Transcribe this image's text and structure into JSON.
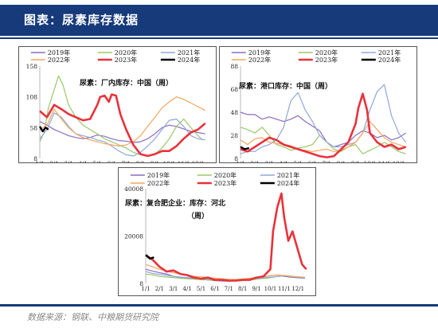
{
  "header": {
    "title": "图表：尿素库存数据"
  },
  "footer": {
    "source": "数据来源：钢联、中粮期货研究院"
  },
  "legend_order": [
    "2019年",
    "2020年",
    "2021年",
    "2022年",
    "2023年",
    "2024年"
  ],
  "colors": {
    "2019年": "#8c6bbf",
    "2020年": "#9bc76b",
    "2021年": "#8fa8d8",
    "2022年": "#f5a55c",
    "2023年": "#e8323b",
    "2024年": "#000000"
  },
  "x_tick_labels": [
    "1/1",
    "2/1",
    "3/1",
    "4/1",
    "5/1",
    "6/1",
    "7/1",
    "8/1",
    "9/1",
    "10/1",
    "11/1",
    "12/1"
  ],
  "chart_data": [
    {
      "type": "line",
      "annotation": "尿素：厂内库存：中国（周）",
      "x_unit": "month",
      "ylim": [
        8,
        158
      ],
      "yticks": [
        "8",
        "58",
        "108",
        "158"
      ],
      "series": [
        {
          "name": "2019年",
          "x": [
            0,
            0.5,
            1,
            1.5,
            2,
            2.5,
            3,
            3.5,
            4,
            4.5,
            5,
            5.5,
            6,
            6.5,
            7,
            7.5,
            8,
            8.5,
            9,
            9.5,
            10,
            10.5,
            11,
            11.5
          ],
          "y": [
            68,
            62,
            55,
            50,
            45,
            42,
            40,
            42,
            46,
            44,
            40,
            37,
            36,
            34,
            35,
            40,
            48,
            58,
            62,
            60,
            56,
            52,
            50,
            48
          ]
        },
        {
          "name": "2020年",
          "x": [
            0,
            0.3,
            0.6,
            1,
            1.3,
            1.6,
            2,
            2.5,
            3,
            3.5,
            4,
            4.5,
            5,
            5.5,
            6,
            6.5,
            7,
            7.5,
            8,
            8.5,
            9,
            9.5,
            10,
            10.5,
            11,
            11.3
          ],
          "y": [
            35,
            50,
            90,
            120,
            142,
            128,
            95,
            75,
            62,
            55,
            48,
            40,
            35,
            30,
            25,
            18,
            14,
            12,
            15,
            25,
            40,
            60,
            72,
            58,
            45,
            38
          ]
        },
        {
          "name": "2021年",
          "x": [
            0,
            0.5,
            1,
            1.5,
            2,
            2.5,
            3,
            3.5,
            4,
            4.5,
            5,
            5.5,
            6,
            6.5,
            7,
            7.5,
            8,
            8.5,
            9,
            9.5,
            10,
            10.5,
            11,
            11.5
          ],
          "y": [
            40,
            55,
            82,
            75,
            60,
            48,
            45,
            42,
            38,
            35,
            28,
            20,
            14,
            12,
            18,
            28,
            40,
            55,
            70,
            72,
            60,
            45,
            40,
            38
          ]
        },
        {
          "name": "2022年",
          "x": [
            0,
            0.5,
            1,
            1.5,
            2,
            2.5,
            3,
            3.5,
            4,
            4.5,
            5,
            5.5,
            6,
            6.5,
            7,
            7.5,
            8,
            8.5,
            9,
            9.5,
            10,
            10.5,
            11,
            11.5
          ],
          "y": [
            55,
            62,
            88,
            72,
            58,
            48,
            42,
            38,
            35,
            32,
            30,
            28,
            30,
            35,
            45,
            60,
            75,
            90,
            100,
            108,
            104,
            98,
            92,
            86
          ]
        },
        {
          "name": "2023年",
          "x": [
            0,
            0.5,
            1,
            1.5,
            2,
            2.5,
            3,
            3.5,
            4,
            4.2,
            4.5,
            4.8,
            5,
            5.3,
            5.6,
            6,
            6.5,
            7,
            7.5,
            8,
            8.5,
            9,
            9.5,
            10,
            10.5,
            11,
            11.5
          ],
          "y": [
            85,
            75,
            95,
            88,
            80,
            75,
            70,
            72,
            95,
            108,
            110,
            100,
            112,
            110,
            80,
            55,
            30,
            15,
            12,
            15,
            20,
            20,
            28,
            40,
            50,
            55,
            65
          ]
        },
        {
          "name": "2024年",
          "x": [
            0,
            0.2,
            0.4,
            0.6
          ],
          "y": [
            60,
            52,
            58,
            55
          ]
        }
      ]
    },
    {
      "type": "line",
      "annotation": "尿素：港口库存：中国（周）",
      "x_unit": "month",
      "ylim": [
        8,
        88
      ],
      "yticks": [
        "8",
        "28",
        "48",
        "68",
        "88"
      ],
      "series": [
        {
          "name": "2019年",
          "x": [
            0,
            0.5,
            1,
            1.5,
            2,
            2.5,
            3,
            3.5,
            4,
            4.5,
            5,
            5.5,
            6,
            6.5,
            7,
            7.5,
            8,
            8.5,
            9,
            9.5,
            10,
            10.5,
            11,
            11.5
          ],
          "y": [
            48,
            46,
            46,
            42,
            44,
            42,
            40,
            42,
            45,
            40,
            36,
            32,
            22,
            18,
            20,
            22,
            28,
            32,
            30,
            26,
            28,
            24,
            26,
            30
          ]
        },
        {
          "name": "2020年",
          "x": [
            0,
            0.5,
            1,
            1.5,
            2,
            2.5,
            3,
            3.5,
            4,
            4.5,
            5,
            5.5,
            6,
            6.5,
            7,
            7.5,
            8,
            8.5,
            9,
            9.5,
            10,
            10.5,
            11,
            11.5
          ],
          "y": [
            35,
            33,
            30,
            35,
            28,
            20,
            18,
            15,
            17,
            18,
            20,
            28,
            22,
            16,
            14,
            18,
            20,
            12,
            15,
            18,
            22,
            18,
            14,
            12
          ]
        },
        {
          "name": "2021年",
          "x": [
            0,
            0.5,
            1,
            1.5,
            2,
            2.5,
            3,
            3.5,
            4,
            4.5,
            5,
            5.5,
            6,
            6.5,
            7,
            7.5,
            8,
            8.5,
            9,
            9.5,
            10,
            10.5,
            11,
            11.5
          ],
          "y": [
            12,
            14,
            14,
            18,
            20,
            24,
            35,
            58,
            65,
            50,
            40,
            28,
            22,
            18,
            18,
            20,
            22,
            30,
            50,
            66,
            72,
            45,
            30,
            22
          ]
        },
        {
          "name": "2022年",
          "x": [
            0,
            0.5,
            1,
            1.5,
            2,
            2.5,
            3,
            3.5,
            4,
            4.5,
            5,
            5.5,
            6,
            6.5,
            7,
            7.5,
            8,
            8.5,
            9,
            9.5,
            10,
            10.5,
            11,
            11.5
          ],
          "y": [
            24,
            20,
            25,
            26,
            22,
            21,
            20,
            19,
            16,
            15,
            14,
            15,
            16,
            14,
            15,
            18,
            22,
            30,
            40,
            33,
            26,
            22,
            20,
            18
          ]
        },
        {
          "name": "2023年",
          "x": [
            0,
            0.5,
            1,
            1.5,
            2,
            2.5,
            3,
            3.5,
            4,
            4.5,
            5,
            5.5,
            6,
            6.5,
            7,
            7.5,
            8,
            8.2,
            8.5,
            8.8,
            9,
            9.5,
            10,
            10.5,
            11,
            11.5
          ],
          "y": [
            16,
            14,
            18,
            22,
            26,
            24,
            20,
            18,
            16,
            14,
            12,
            10,
            9,
            10,
            16,
            22,
            38,
            52,
            64,
            50,
            30,
            22,
            18,
            20,
            16,
            18
          ]
        },
        {
          "name": "2024年",
          "x": [
            0,
            0.3,
            0.6
          ],
          "y": [
            18,
            16,
            17
          ]
        }
      ]
    },
    {
      "type": "line",
      "annotation": "尿素：复合肥企业：库存：河北（周）",
      "x_unit": "month",
      "ylim": [
        8,
        40008
      ],
      "yticks": [
        "8",
        "20008",
        "40008"
      ],
      "series": [
        {
          "name": "2019年",
          "x": [
            0,
            0.5,
            1,
            1.5,
            2,
            2.5,
            3,
            3.5,
            4,
            4.5,
            5,
            5.5,
            6,
            6.5,
            7,
            7.5,
            8,
            8.5,
            9,
            9.5,
            10,
            10.5,
            11,
            11.5
          ],
          "y": [
            6000,
            5200,
            4500,
            4000,
            3000,
            2600,
            2200,
            2000,
            1800,
            1500,
            1200,
            1000,
            900,
            1100,
            1400,
            1600,
            2200,
            2800,
            3200,
            3600,
            3000,
            2600,
            2400,
            2200
          ]
        },
        {
          "name": "2020年",
          "x": [
            0,
            0.5,
            1,
            1.5,
            2,
            2.5,
            3,
            3.5,
            4,
            4.5,
            5,
            5.5,
            6,
            6.5,
            7,
            7.5,
            8,
            8.5,
            9,
            9.5,
            10,
            10.5,
            11,
            11.5
          ],
          "y": [
            4000,
            3600,
            3000,
            2700,
            2500,
            2200,
            2000,
            1800,
            1600,
            1500,
            1300,
            1200,
            1100,
            1000,
            1200,
            1500,
            1800,
            2100,
            2400,
            3000,
            3400,
            3100,
            2800,
            2600
          ]
        },
        {
          "name": "2021年",
          "x": [
            0,
            0.5,
            1,
            1.5,
            2,
            2.5,
            3,
            3.5,
            4,
            4.5,
            5,
            5.5,
            6,
            6.5,
            7,
            7.5,
            8,
            8.5,
            9,
            9.5,
            10,
            10.5,
            11,
            11.5
          ],
          "y": [
            5000,
            4200,
            3800,
            3400,
            3000,
            2700,
            2500,
            2200,
            2000,
            1800,
            1500,
            1300,
            1200,
            1300,
            1600,
            1800,
            2100,
            2400,
            2600,
            2900,
            3200,
            2800,
            2600,
            2400
          ]
        },
        {
          "name": "2022年",
          "x": [
            0,
            0.5,
            1,
            1.5,
            2,
            2.5,
            3,
            3.5,
            4,
            4.5,
            5,
            5.5,
            6,
            6.5,
            7,
            7.5,
            8,
            8.5,
            9,
            9.5,
            10,
            10.5,
            11,
            11.5
          ],
          "y": [
            8000,
            7000,
            6000,
            5200,
            4500,
            4000,
            3500,
            3000,
            2800,
            2500,
            2200,
            2000,
            1800,
            1700,
            1900,
            2200,
            2500,
            2800,
            3200,
            3600,
            3300,
            3000,
            2800,
            2600
          ]
        },
        {
          "name": "2023年",
          "x": [
            0,
            0.5,
            1,
            1.5,
            2,
            2.5,
            3,
            3.5,
            4,
            4.5,
            5,
            5.5,
            6,
            6.5,
            7,
            7.5,
            8,
            8.5,
            9,
            9.2,
            9.5,
            9.8,
            10,
            10.3,
            10.6,
            11,
            11.3,
            11.6
          ],
          "y": [
            12000,
            10000,
            7000,
            5000,
            5500,
            4000,
            3500,
            2500,
            2000,
            2500,
            1500,
            1500,
            1200,
            1200,
            1500,
            1500,
            2500,
            3000,
            6000,
            22000,
            32000,
            38000,
            28000,
            18000,
            22000,
            14000,
            8000,
            6000
          ]
        },
        {
          "name": "2024年",
          "x": [
            0,
            0.3,
            0.6
          ],
          "y": [
            12000,
            10500,
            11000
          ]
        }
      ]
    }
  ]
}
